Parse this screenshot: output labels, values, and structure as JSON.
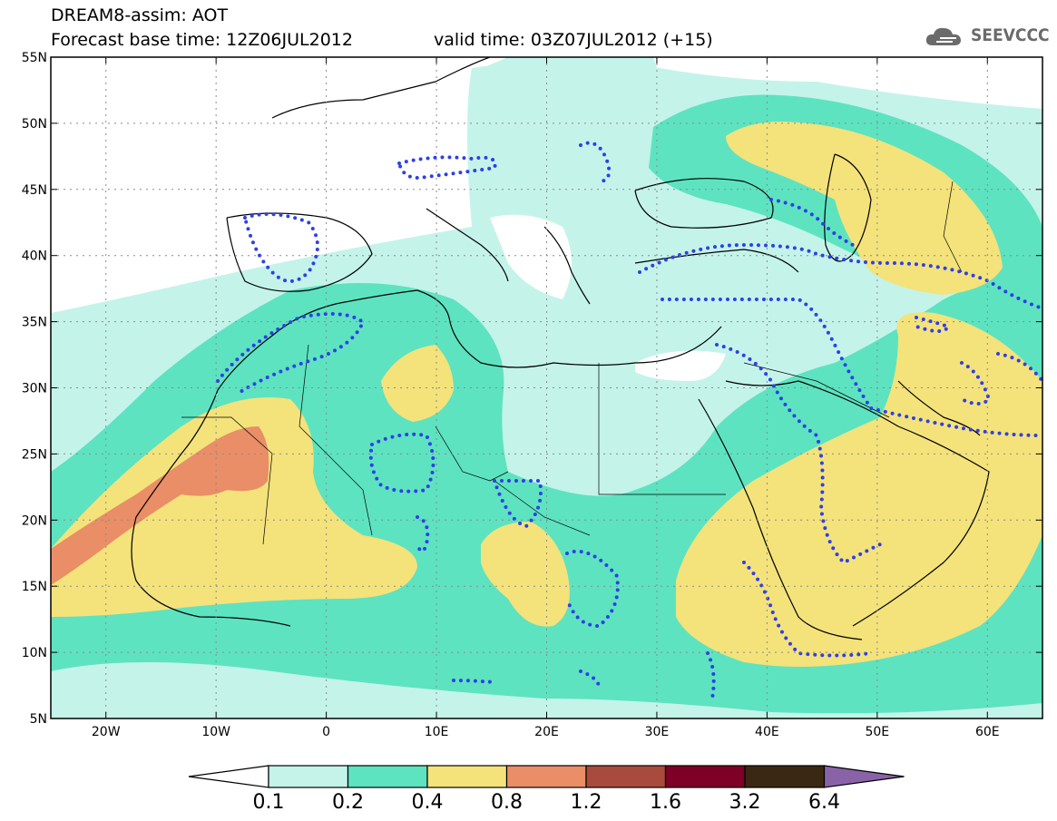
{
  "title": {
    "line1": "DREAM8-assim: AOT",
    "line2_left": "Forecast base time: 12Z06JUL2012",
    "line2_right": "valid time: 03Z07JUL2012 (+15)"
  },
  "logo": {
    "text": "SEEVCCC",
    "icon": "cloud-icon"
  },
  "colors": {
    "level_0_1": "#c4f3ea",
    "level_0_2": "#5de3c0",
    "level_0_4": "#f4e27b",
    "level_0_8": "#e98e66",
    "level_1_2": "#a84a3c",
    "level_1_6": "#7e0026",
    "level_3_2": "#3a2813",
    "level_6_4": "#8a62a8",
    "coast": "#000000",
    "dots": "#2f3fe6"
  },
  "chart_data": {
    "type": "heatmap",
    "variable": "AOT",
    "lon_range": [
      -25,
      65
    ],
    "lat_range": [
      5,
      55
    ],
    "x_ticks": [
      "20W",
      "10W",
      "0",
      "10E",
      "20E",
      "30E",
      "40E",
      "50E",
      "60E"
    ],
    "x_tick_values": [
      -20,
      -10,
      0,
      10,
      20,
      30,
      40,
      50,
      60
    ],
    "y_ticks": [
      "5N",
      "10N",
      "15N",
      "20N",
      "25N",
      "30N",
      "35N",
      "40N",
      "45N",
      "50N",
      "55N"
    ],
    "y_tick_values": [
      5,
      10,
      15,
      20,
      25,
      30,
      35,
      40,
      45,
      50,
      55
    ],
    "colorbar_labels": [
      "0.1",
      "0.2",
      "0.4",
      "0.8",
      "1.2",
      "1.6",
      "3.2",
      "6.4"
    ],
    "colorbar_levels": [
      0.1,
      0.2,
      0.4,
      0.8,
      1.2,
      1.6,
      3.2,
      6.4
    ],
    "grid": true
  }
}
